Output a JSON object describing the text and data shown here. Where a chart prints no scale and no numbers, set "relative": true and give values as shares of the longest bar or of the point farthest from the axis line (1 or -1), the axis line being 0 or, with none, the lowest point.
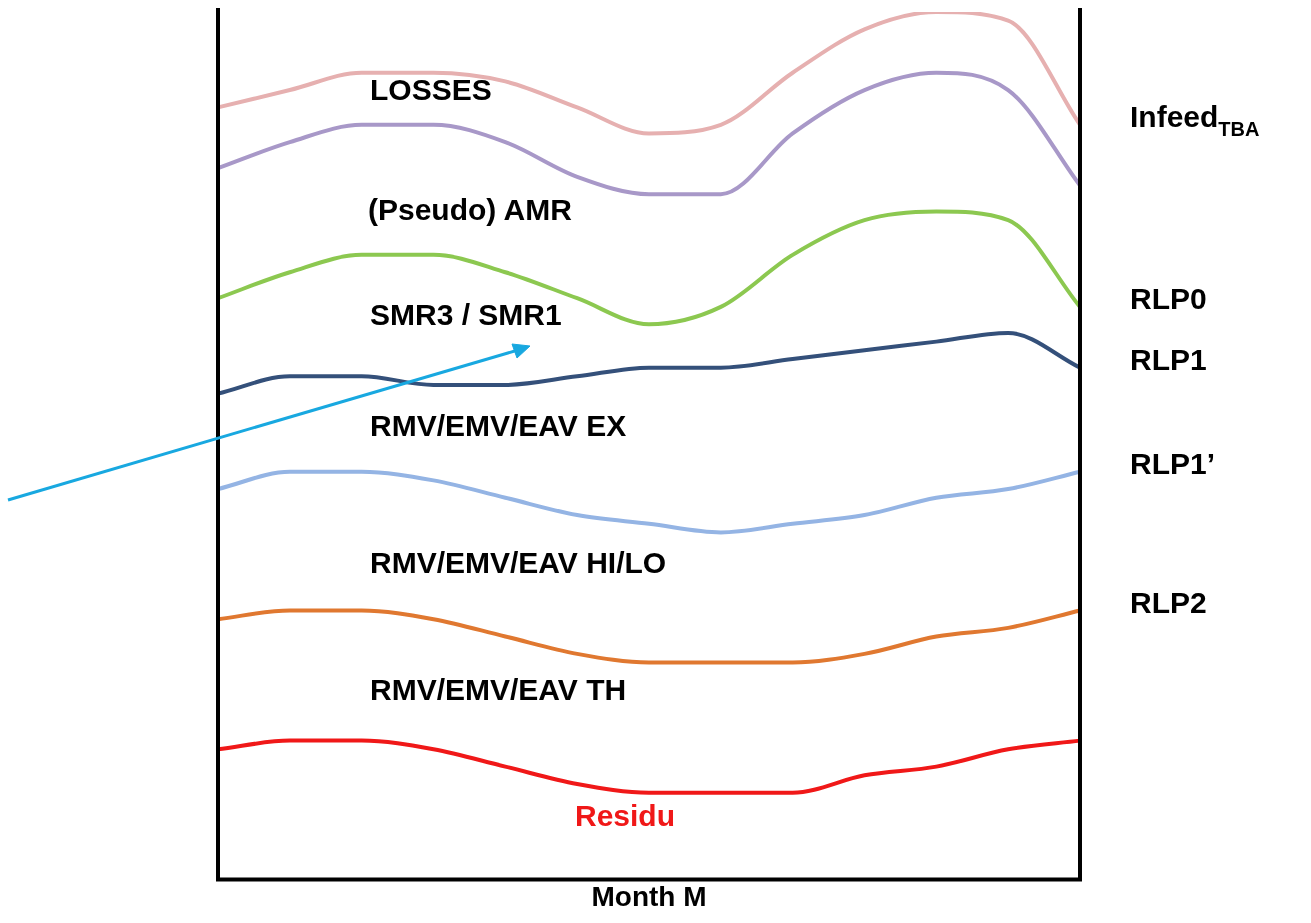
{
  "chart_data": {
    "type": "line",
    "relative": true,
    "xlabel": "Month M",
    "categories": [
      null,
      null,
      null,
      null,
      null,
      null,
      null,
      null,
      null,
      null,
      null,
      null,
      null
    ],
    "series": [
      {
        "name": "Infeed$_{TBA}$",
        "color": "#e6b0b0",
        "values": [
          0.89,
          0.91,
          0.93,
          0.93,
          0.92,
          0.89,
          0.86,
          0.87,
          0.93,
          0.98,
          1,
          0.99,
          0.87
        ]
      },
      {
        "color": "#a898c8",
        "values": [
          0.82,
          0.85,
          0.87,
          0.87,
          0.85,
          0.81,
          0.79,
          0.79,
          0.86,
          0.91,
          0.93,
          0.91,
          0.8
        ]
      },
      {
        "name": "RLP0",
        "color": "#8cc850",
        "values": [
          0.67,
          0.7,
          0.72,
          0.72,
          0.7,
          0.67,
          0.64,
          0.66,
          0.72,
          0.76,
          0.77,
          0.76,
          0.66
        ]
      },
      {
        "name": "RLP1",
        "color": "#34507a",
        "values": [
          0.56,
          0.58,
          0.58,
          0.57,
          0.57,
          0.58,
          0.59,
          0.59,
          0.6,
          0.61,
          0.62,
          0.63,
          0.59
        ]
      },
      {
        "name": "RLP1’",
        "color": "#94b4e4",
        "values": [
          0.45,
          0.47,
          0.47,
          0.46,
          0.44,
          0.42,
          0.41,
          0.4,
          0.41,
          0.42,
          0.44,
          0.45,
          0.47
        ]
      },
      {
        "name": "RLP2",
        "color": "#e07830",
        "values": [
          0.3,
          0.31,
          0.31,
          0.3,
          0.28,
          0.26,
          0.25,
          0.25,
          0.25,
          0.26,
          0.28,
          0.29,
          0.31
        ]
      },
      {
        "color": "#f01818",
        "values": [
          0.15,
          0.16,
          0.16,
          0.15,
          0.13,
          0.11,
          0.1,
          0.1,
          0.1,
          0.12,
          0.13,
          0.15,
          0.16
        ]
      }
    ],
    "annotations": [
      "LOSSES",
      "(Pseudo) AMR",
      "SMR3 / SMR1",
      "RMV/EMV/EAV EX",
      "RMV/EMV/EAV HI/LO",
      "RMV/EMV/EAV TH",
      "Residu"
    ],
    "legend": false,
    "grid": false,
    "marker": "none",
    "line_style": "solid"
  }
}
